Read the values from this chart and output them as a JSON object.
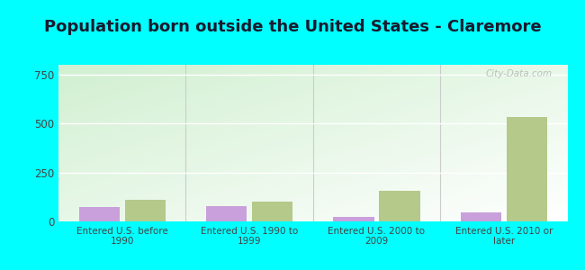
{
  "title": "Population born outside the United States - Claremore",
  "categories": [
    "Entered U.S. before\n1990",
    "Entered U.S. 1990 to\n1999",
    "Entered U.S. 2000 to\n2009",
    "Entered U.S. 2010 or\nlater"
  ],
  "native_values": [
    75,
    80,
    22,
    48
  ],
  "foreign_values": [
    110,
    100,
    155,
    535
  ],
  "native_color": "#c9a0dc",
  "foreign_color": "#b5c98a",
  "bg_top_right": "#e8f5e0",
  "bg_bottom_left": "#d0f0d8",
  "outer_background": "#00ffff",
  "ylim": [
    0,
    800
  ],
  "yticks": [
    0,
    250,
    500,
    750
  ],
  "bar_width": 0.32,
  "title_fontsize": 13,
  "watermark": "City-Data.com"
}
